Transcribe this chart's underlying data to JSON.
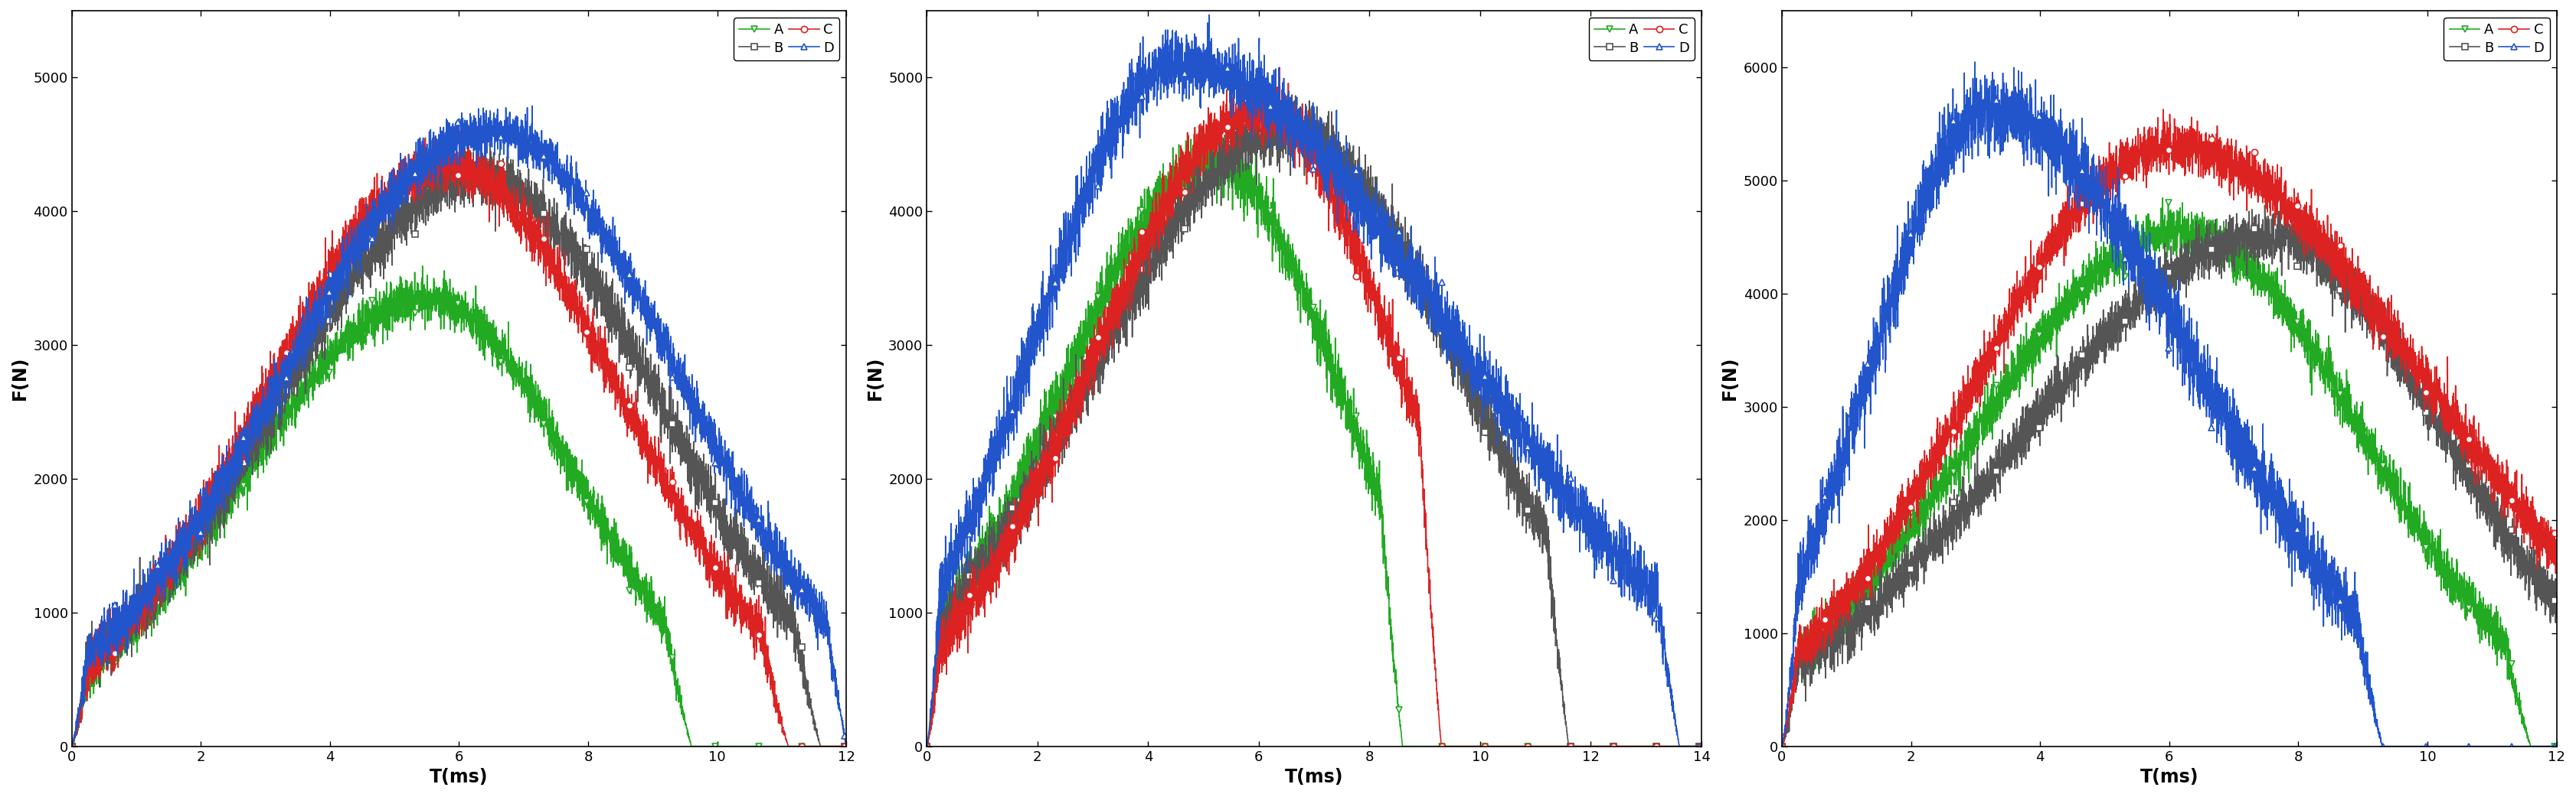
{
  "subplots": [
    {
      "xlim": [
        0,
        12
      ],
      "xticks": [
        0,
        2,
        4,
        6,
        8,
        10,
        12
      ],
      "ylim": [
        0,
        5500
      ],
      "yticks": [
        0,
        1000,
        2000,
        3000,
        4000,
        5000
      ],
      "xlabel": "T(ms)",
      "ylabel": "F(N)"
    },
    {
      "xlim": [
        0,
        14
      ],
      "xticks": [
        0,
        2,
        4,
        6,
        8,
        10,
        12,
        14
      ],
      "ylim": [
        0,
        5500
      ],
      "yticks": [
        0,
        1000,
        2000,
        3000,
        4000,
        5000
      ],
      "xlabel": "T(ms)",
      "ylabel": "F(N)"
    },
    {
      "xlim": [
        0,
        12
      ],
      "xticks": [
        0,
        2,
        4,
        6,
        8,
        10,
        12
      ],
      "ylim": [
        0,
        6500
      ],
      "yticks": [
        0,
        1000,
        2000,
        3000,
        4000,
        5000,
        6000
      ],
      "xlabel": "T(ms)",
      "ylabel": "F(N)"
    }
  ],
  "colors": {
    "A": "#22aa22",
    "B": "#555555",
    "C": "#dd2222",
    "D": "#2255cc"
  },
  "markers": {
    "A": "v",
    "B": "s",
    "C": "o",
    "D": "^"
  },
  "curve_order": [
    "A",
    "B",
    "C",
    "D"
  ],
  "background_color": "#ffffff",
  "font_size_axis_label": 17,
  "font_size_tick": 13,
  "font_size_legend": 13
}
